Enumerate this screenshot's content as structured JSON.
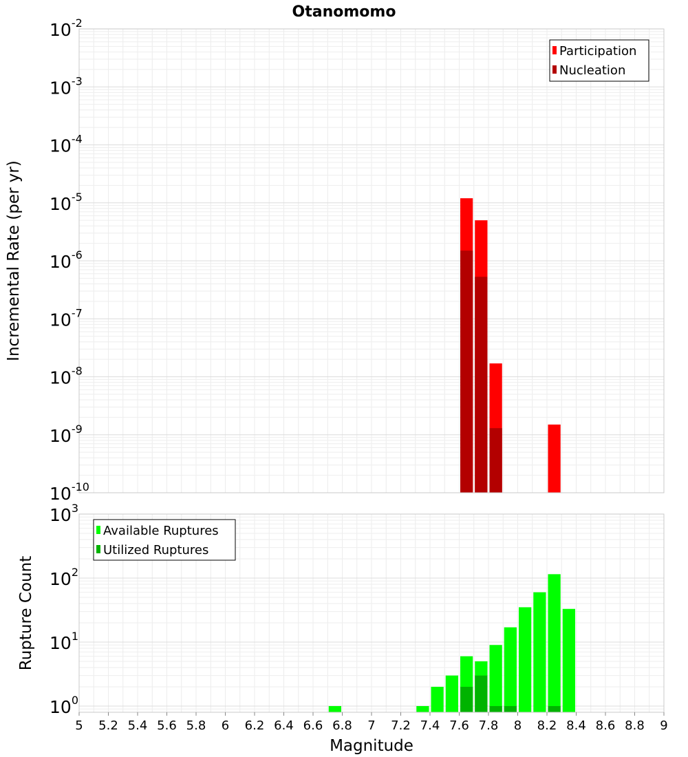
{
  "chart_data": [
    {
      "type": "bar",
      "title": "Otanomomo",
      "xlabel": "",
      "ylabel": "Incremental Rate (per yr)",
      "yscale": "log",
      "xlim": [
        5,
        9
      ],
      "ylim": [
        1e-10,
        0.01
      ],
      "grid": true,
      "legend_position": "top-right",
      "bin_width": 0.1,
      "series": [
        {
          "name": "Participation",
          "color": "#ff0000",
          "x": [
            7.65,
            7.75,
            7.85,
            8.25
          ],
          "values": [
            1.2e-05,
            5e-06,
            1.7e-08,
            1.5e-09
          ]
        },
        {
          "name": "Nucleation",
          "color": "#b30000",
          "x": [
            7.65,
            7.75,
            7.85
          ],
          "values": [
            1.5e-06,
            5.3e-07,
            1.3e-09
          ]
        }
      ],
      "y_ticks": [
        {
          "base": "10",
          "exp": "-10"
        },
        {
          "base": "10",
          "exp": "-9"
        },
        {
          "base": "10",
          "exp": "-8"
        },
        {
          "base": "10",
          "exp": "-7"
        },
        {
          "base": "10",
          "exp": "-6"
        },
        {
          "base": "10",
          "exp": "-5"
        },
        {
          "base": "10",
          "exp": "-4"
        },
        {
          "base": "10",
          "exp": "-3"
        },
        {
          "base": "10",
          "exp": "-2"
        }
      ]
    },
    {
      "type": "bar",
      "title": "",
      "xlabel": "Magnitude",
      "ylabel": "Rupture Count",
      "yscale": "log",
      "xlim": [
        5,
        9
      ],
      "ylim": [
        0.8,
        1000
      ],
      "grid": true,
      "legend_position": "top-left",
      "bin_width": 0.1,
      "series": [
        {
          "name": "Available Ruptures",
          "color": "#00ff00",
          "x": [
            6.75,
            7.35,
            7.45,
            7.55,
            7.65,
            7.75,
            7.85,
            7.95,
            8.05,
            8.15,
            8.25,
            8.35
          ],
          "values": [
            1,
            1,
            2,
            3,
            6,
            5,
            9,
            17,
            35,
            60,
            115,
            33
          ]
        },
        {
          "name": "Utilized Ruptures",
          "color": "#00b300",
          "x": [
            7.65,
            7.75,
            7.85,
            7.95,
            8.25
          ],
          "values": [
            2,
            3,
            1,
            1,
            1
          ]
        }
      ],
      "y_ticks": [
        {
          "base": "10",
          "exp": "0"
        },
        {
          "base": "10",
          "exp": "1"
        },
        {
          "base": "10",
          "exp": "2"
        },
        {
          "base": "10",
          "exp": "3"
        }
      ],
      "x_ticks": [
        "5",
        "5.2",
        "5.4",
        "5.6",
        "5.8",
        "6",
        "6.2",
        "6.4",
        "6.6",
        "6.8",
        "7",
        "7.2",
        "7.4",
        "7.6",
        "7.8",
        "8",
        "8.2",
        "8.4",
        "8.6",
        "8.8",
        "9"
      ]
    }
  ]
}
